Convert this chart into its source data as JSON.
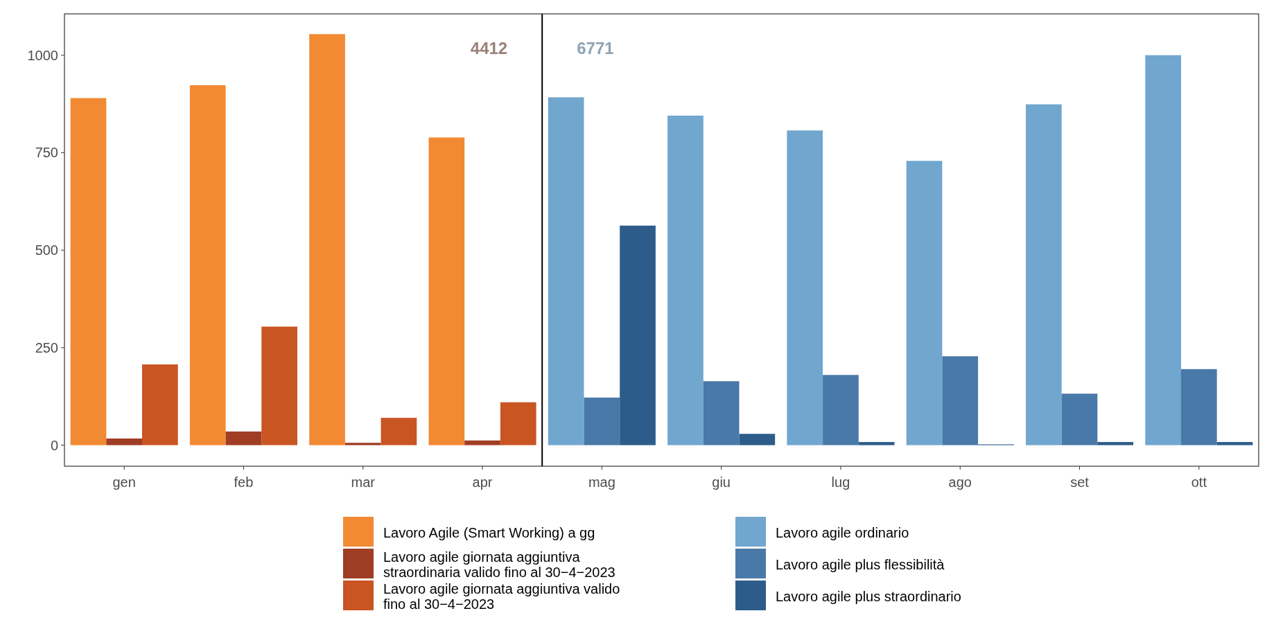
{
  "chart_data": {
    "type": "bar",
    "categories": [
      "gen",
      "feb",
      "mar",
      "apr",
      "mag",
      "giu",
      "lug",
      "ago",
      "set",
      "ott"
    ],
    "series": [
      {
        "name": "Lavoro Agile (Smart Working) a gg",
        "color": "#f28a33",
        "values": [
          890,
          923,
          1054,
          789,
          null,
          null,
          null,
          null,
          null,
          null
        ]
      },
      {
        "name": "Lavoro agile giornata aggiuntiva straordinaria valido fino al 30−4−2023",
        "color": "#a03d25",
        "values": [
          17,
          35,
          6,
          12,
          null,
          null,
          null,
          null,
          null,
          null
        ]
      },
      {
        "name": "Lavoro agile giornata aggiuntiva valido fino al 30−4−2023",
        "color": "#c95522",
        "values": [
          207,
          304,
          70,
          110,
          null,
          null,
          null,
          null,
          null,
          null
        ]
      },
      {
        "name": "Lavoro agile ordinario",
        "color": "#71a6cf",
        "values": [
          null,
          null,
          null,
          null,
          892,
          845,
          807,
          729,
          874,
          1000
        ]
      },
      {
        "name": "Lavoro agile plus flessibilità",
        "color": "#4979a8",
        "values": [
          null,
          null,
          null,
          null,
          122,
          164,
          180,
          228,
          132,
          195
        ]
      },
      {
        "name": "Lavoro agile plus straordinario",
        "color": "#2d5c8a",
        "values": [
          null,
          null,
          null,
          null,
          563,
          29,
          8,
          2,
          8,
          8
        ]
      }
    ],
    "ylim": [
      -54,
      1106
    ],
    "yticks": [
      0,
      250,
      500,
      750,
      1000
    ],
    "grid": false,
    "legend": "bottom",
    "annotations": [
      "4412",
      "6771"
    ]
  }
}
